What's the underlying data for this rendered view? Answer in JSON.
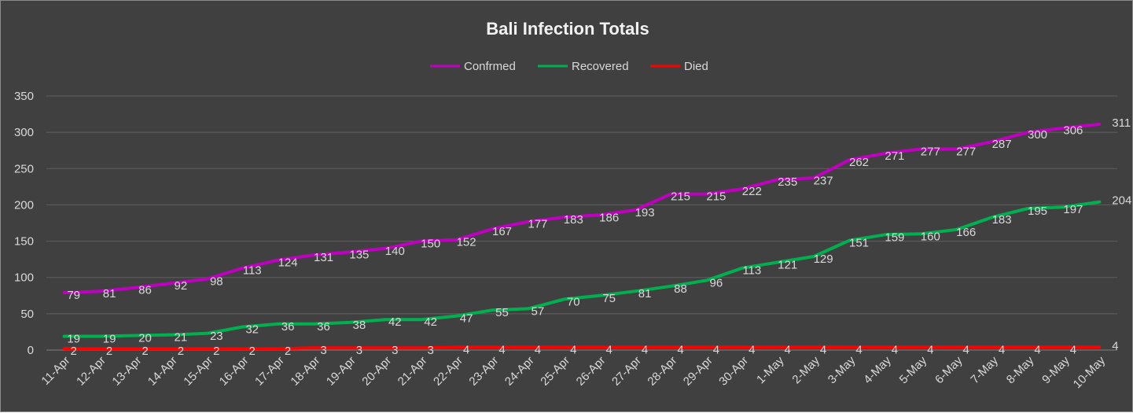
{
  "chart_data": {
    "type": "line",
    "title": "Bali Infection Totals",
    "xlabel": "",
    "ylabel": "",
    "ylim": [
      0,
      350
    ],
    "yticks": [
      0,
      50,
      100,
      150,
      200,
      250,
      300,
      350
    ],
    "grid": true,
    "legend_position": "top",
    "background": "#404040",
    "categories": [
      "11-Apr",
      "12-Apr",
      "13-Apr",
      "14-Apr",
      "15-Apr",
      "16-Apr",
      "17-Apr",
      "18-Apr",
      "19-Apr",
      "20-Apr",
      "21-Apr",
      "22-Apr",
      "23-Apr",
      "24-Apr",
      "25-Apr",
      "26-Apr",
      "27-Apr",
      "28-Apr",
      "29-Apr",
      "30-Apr",
      "1-May",
      "2-May",
      "3-May",
      "4-May",
      "5-May",
      "6-May",
      "7-May",
      "8-May",
      "9-May",
      "10-May"
    ],
    "series": [
      {
        "name": "Confrmed",
        "color": "#c000c0",
        "values": [
          79,
          81,
          86,
          92,
          98,
          113,
          124,
          131,
          135,
          140,
          150,
          152,
          167,
          177,
          183,
          186,
          193,
          215,
          215,
          222,
          235,
          237,
          262,
          271,
          277,
          277,
          287,
          300,
          306,
          311
        ]
      },
      {
        "name": "Recovered",
        "color": "#00b050",
        "values": [
          19,
          19,
          20,
          21,
          23,
          32,
          36,
          36,
          38,
          42,
          42,
          47,
          55,
          57,
          70,
          75,
          81,
          88,
          96,
          113,
          121,
          129,
          151,
          159,
          160,
          166,
          183,
          195,
          197,
          204
        ]
      },
      {
        "name": "Died",
        "color": "#ff0000",
        "values": [
          2,
          2,
          2,
          2,
          2,
          2,
          2,
          3,
          3,
          3,
          3,
          4,
          4,
          4,
          4,
          4,
          4,
          4,
          4,
          4,
          4,
          4,
          4,
          4,
          4,
          4,
          4,
          4,
          4,
          4
        ]
      }
    ]
  }
}
